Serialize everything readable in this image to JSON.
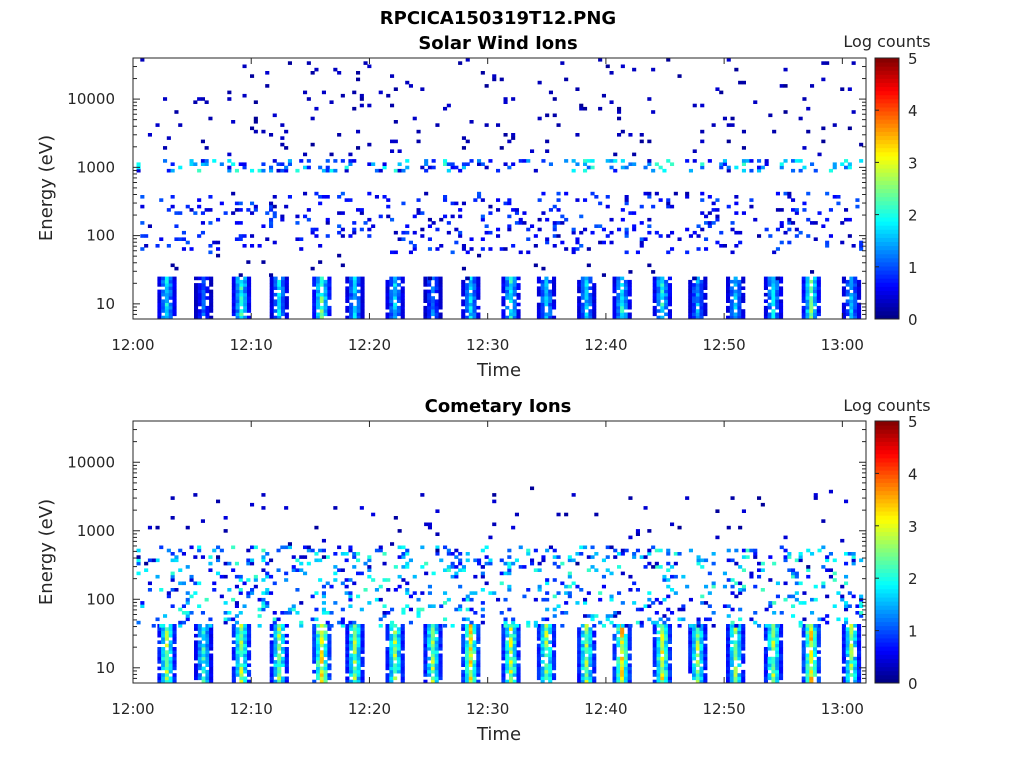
{
  "figure_title": "RPCICA150319T12.PNG",
  "chart_data": [
    {
      "type": "heatmap",
      "title": "Solar Wind Ions",
      "xlabel": "Time",
      "ylabel": "Energy (eV)",
      "x_ticks": [
        "12:00",
        "12:10",
        "12:20",
        "12:30",
        "12:40",
        "12:50",
        "13:00"
      ],
      "xlim": [
        "12:00",
        "13:02"
      ],
      "y_scale": "log",
      "y_ticks": [
        "10",
        "100",
        "1000",
        "10000"
      ],
      "ylim": [
        6,
        40000
      ],
      "colorbar": {
        "label": "Log counts",
        "ticks": [
          "0",
          "1",
          "2",
          "3",
          "4",
          "5"
        ],
        "range": [
          0,
          5
        ],
        "colormap": "jet"
      },
      "pulse_times_min": [
        2.7,
        5.8,
        9.0,
        12.2,
        15.8,
        18.6,
        22.0,
        25.2,
        28.4,
        31.8,
        34.8,
        38.2,
        41.2,
        44.6,
        47.6,
        50.8,
        54.0,
        57.2,
        60.6
      ],
      "pulse_peak_log_counts": [
        2.0,
        1.2,
        2.3,
        1.9,
        2.6,
        1.8,
        1.9,
        1.4,
        1.9,
        2.2,
        1.9,
        1.8,
        2.1,
        2.2,
        1.6,
        1.8,
        2.0,
        2.6,
        1.7
      ],
      "low_energy_band_eV": [
        6,
        25
      ],
      "mid_energy_band_eV": [
        60,
        400
      ],
      "high_energy_band_eV": [
        900,
        1300
      ],
      "high_band_peak_log_counts": 2.2
    },
    {
      "type": "heatmap",
      "title": "Cometary Ions",
      "xlabel": "Time",
      "ylabel": "Energy (eV)",
      "x_ticks": [
        "12:00",
        "12:10",
        "12:20",
        "12:30",
        "12:40",
        "12:50",
        "13:00"
      ],
      "xlim": [
        "12:00",
        "13:02"
      ],
      "y_scale": "log",
      "y_ticks": [
        "10",
        "100",
        "1000",
        "10000"
      ],
      "ylim": [
        6,
        40000
      ],
      "colorbar": {
        "label": "Log counts",
        "ticks": [
          "0",
          "1",
          "2",
          "3",
          "4",
          "5"
        ],
        "range": [
          0,
          5
        ],
        "colormap": "jet"
      },
      "pulse_times_min": [
        2.7,
        5.8,
        9.0,
        12.2,
        15.8,
        18.6,
        22.0,
        25.2,
        28.4,
        31.8,
        34.8,
        38.2,
        41.2,
        44.6,
        47.6,
        50.8,
        54.0,
        57.2,
        60.6
      ],
      "pulse_peak_log_counts": [
        2.9,
        2.3,
        3.0,
        2.8,
        3.5,
        2.8,
        2.9,
        2.9,
        3.4,
        3.1,
        2.9,
        2.9,
        3.5,
        3.3,
        2.9,
        2.8,
        2.9,
        3.5,
        2.8
      ],
      "low_energy_band_eV": [
        6,
        40
      ],
      "mid_energy_band_eV": [
        40,
        600
      ],
      "scattered_energy_eV": [
        300,
        4000
      ]
    }
  ]
}
